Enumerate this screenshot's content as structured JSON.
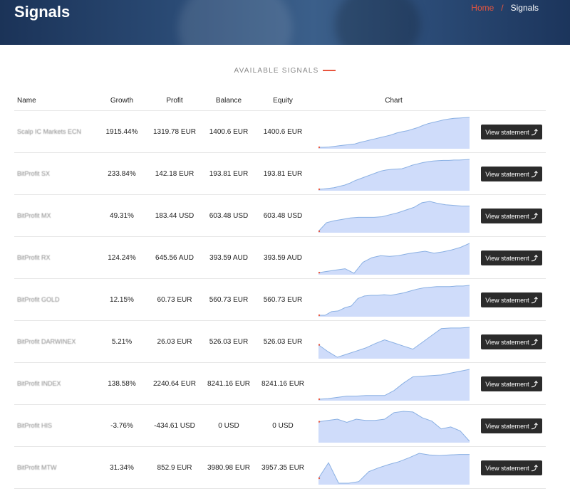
{
  "header": {
    "title": "Signals",
    "breadcrumb": {
      "home": "Home",
      "separator": "/",
      "current": "Signals"
    }
  },
  "section_title": "AVAILABLE SIGNALS",
  "columns": {
    "name": "Name",
    "growth": "Growth",
    "profit": "Profit",
    "balance": "Balance",
    "equity": "Equity",
    "chart": "Chart"
  },
  "view_label": "View statement",
  "view_icon": "external-arrow-icon",
  "chart_style": {
    "fill": "#cfdcfa",
    "line": "#8ab0e3",
    "start_marker": "#e8553e"
  },
  "signals": [
    {
      "name": "Scalp IC Markets ECN",
      "growth": "1915.44%",
      "profit": "1319.78 EUR",
      "balance": "1400.6 EUR",
      "equity": "1400.6 EUR",
      "trend": [
        2,
        2,
        3,
        5,
        7,
        9,
        11,
        13,
        18,
        22,
        26,
        30,
        34,
        38,
        42,
        48,
        52,
        55,
        60,
        65,
        72,
        78,
        82,
        86,
        90,
        93,
        95,
        96,
        97,
        98
      ]
    },
    {
      "name": "BitProfit SX",
      "growth": "233.84%",
      "profit": "142.18 EUR",
      "balance": "193.81 EUR",
      "equity": "193.81 EUR",
      "trend": [
        3,
        4,
        6,
        8,
        12,
        16,
        22,
        30,
        36,
        42,
        48,
        54,
        60,
        63,
        65,
        66,
        67,
        72,
        78,
        82,
        86,
        89,
        91,
        92,
        93,
        93,
        94,
        94,
        95,
        96
      ]
    },
    {
      "name": "BitProfit MX",
      "growth": "49.31%",
      "profit": "183.44 USD",
      "balance": "603.48 USD",
      "equity": "603.48 USD",
      "trend": [
        2,
        28,
        34,
        38,
        42,
        44,
        44,
        44,
        46,
        52,
        58,
        66,
        74,
        88,
        92,
        86,
        82,
        80,
        78,
        78
      ]
    },
    {
      "name": "BitProfit RX",
      "growth": "124.24%",
      "profit": "645.56 AUD",
      "balance": "393.59 AUD",
      "equity": "393.59 AUD",
      "trend": [
        10,
        14,
        18,
        22,
        8,
        42,
        56,
        62,
        60,
        62,
        68,
        72,
        76,
        70,
        74,
        80,
        88,
        100
      ]
    },
    {
      "name": "BitProfit GOLD",
      "growth": "12.15%",
      "profit": "60.73 EUR",
      "balance": "560.73 EUR",
      "equity": "560.73 EUR",
      "trend": [
        2,
        2,
        14,
        16,
        26,
        32,
        56,
        64,
        66,
        66,
        68,
        66,
        70,
        74,
        80,
        86,
        90,
        92,
        94,
        94,
        94,
        96,
        96,
        98
      ]
    },
    {
      "name": "BitProfit DARWINEX",
      "growth": "5.21%",
      "profit": "26.03 EUR",
      "balance": "526.03 EUR",
      "equity": "526.03 EUR",
      "trend": [
        42,
        20,
        2,
        12,
        22,
        32,
        46,
        58,
        48,
        38,
        28,
        50,
        72,
        94,
        96,
        96,
        98
      ]
    },
    {
      "name": "BitProfit INDEX",
      "growth": "138.58%",
      "profit": "2240.64 EUR",
      "balance": "8241.16 EUR",
      "equity": "8241.16 EUR",
      "trend": [
        2,
        4,
        8,
        12,
        12,
        14,
        14,
        14,
        30,
        54,
        74,
        76,
        78,
        80,
        86,
        92,
        98
      ]
    },
    {
      "name": "BitProfit HIS",
      "growth": "-3.76%",
      "profit": "-434.61 USD",
      "balance": "0 USD",
      "equity": "0 USD",
      "trend": [
        62,
        66,
        70,
        60,
        70,
        66,
        66,
        70,
        90,
        94,
        92,
        74,
        64,
        40,
        46,
        34,
        2
      ]
    },
    {
      "name": "BitProfit MTW",
      "growth": "31.34%",
      "profit": "852.9 EUR",
      "balance": "3980.98 EUR",
      "equity": "3957.35 EUR",
      "trend": [
        20,
        76,
        2,
        2,
        8,
        44,
        58,
        70,
        80,
        94,
        110,
        104,
        102,
        104,
        106,
        106
      ]
    }
  ]
}
